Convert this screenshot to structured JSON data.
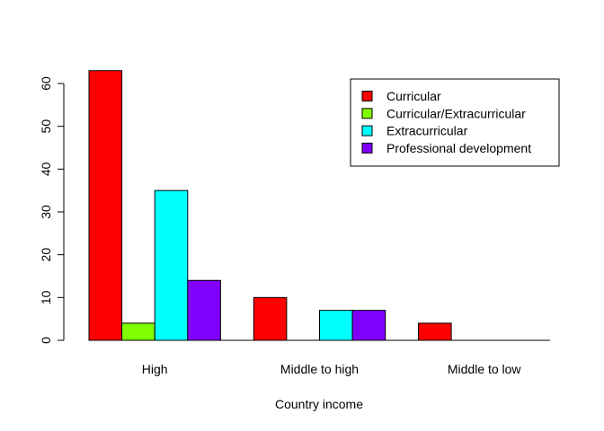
{
  "chart_data": {
    "type": "bar",
    "grouped": true,
    "categories": [
      "High",
      "Middle to high",
      "Middle to low"
    ],
    "series": [
      {
        "name": "Curricular",
        "color": "#FF0000",
        "values": [
          63,
          10,
          4
        ]
      },
      {
        "name": "Curricular/Extracurricular",
        "color": "#80FF00",
        "values": [
          4,
          0,
          0
        ]
      },
      {
        "name": "Extracurricular",
        "color": "#00FFFF",
        "values": [
          35,
          7,
          0
        ]
      },
      {
        "name": "Professional development",
        "color": "#8000FF",
        "values": [
          14,
          7,
          0
        ]
      }
    ],
    "xlabel": "Country income",
    "ylabel": "",
    "ylim": [
      0,
      66
    ],
    "yticks": [
      0,
      10,
      20,
      30,
      40,
      50,
      60
    ],
    "grid": false,
    "legend_position": "top-right"
  }
}
